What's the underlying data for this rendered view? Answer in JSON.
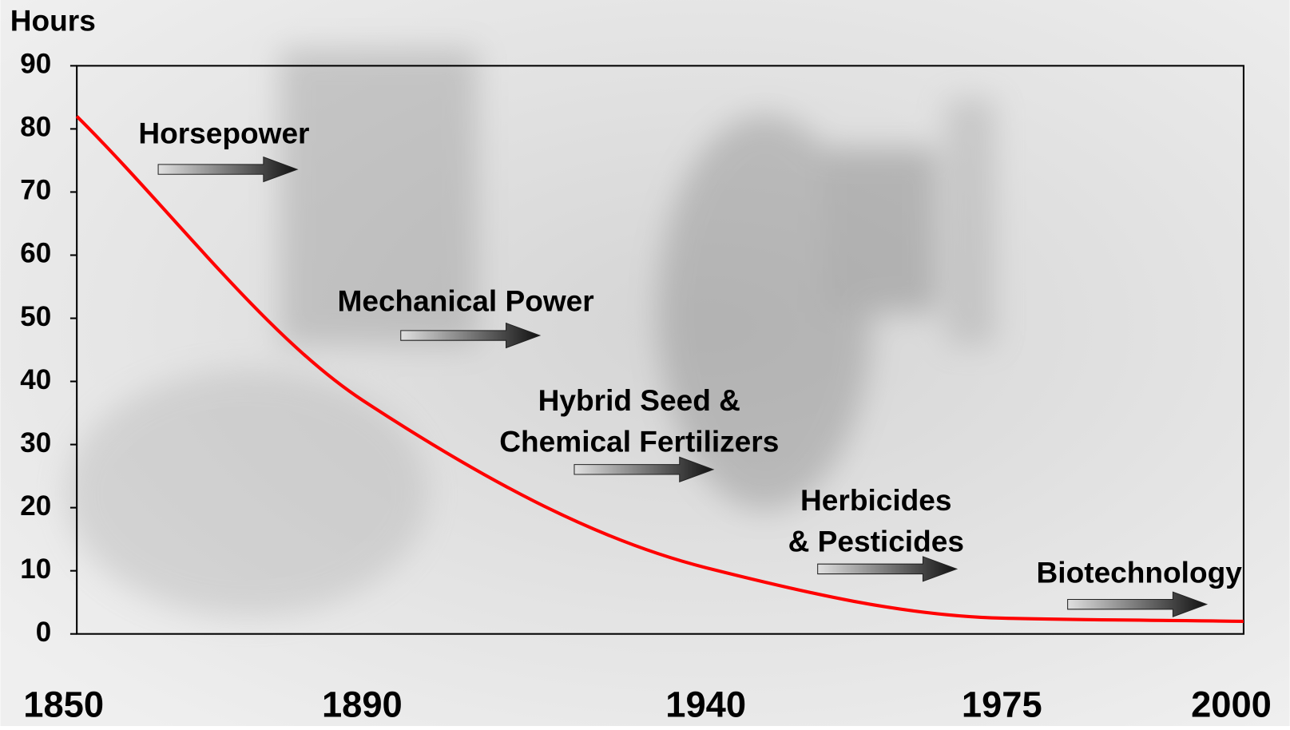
{
  "chart_data": {
    "type": "line",
    "y_label": "Hours",
    "categories": [
      "1850",
      "1890",
      "1940",
      "1975",
      "2000"
    ],
    "series": [
      {
        "name": "Hours",
        "color": "#ff0000",
        "values": [
          82,
          37,
          10.5,
          2.5,
          2
        ]
      }
    ],
    "ylim": [
      0,
      90
    ],
    "yticks": [
      0,
      10,
      20,
      30,
      40,
      50,
      60,
      70,
      80,
      90
    ],
    "annotations": [
      {
        "lines": [
          "Horsepower"
        ]
      },
      {
        "lines": [
          "Mechanical Power"
        ]
      },
      {
        "lines": [
          "Hybrid Seed &",
          "Chemical Fertilizers"
        ]
      },
      {
        "lines": [
          "Herbicides",
          "& Pesticides"
        ]
      },
      {
        "lines": [
          "Biotechnology"
        ]
      }
    ]
  }
}
